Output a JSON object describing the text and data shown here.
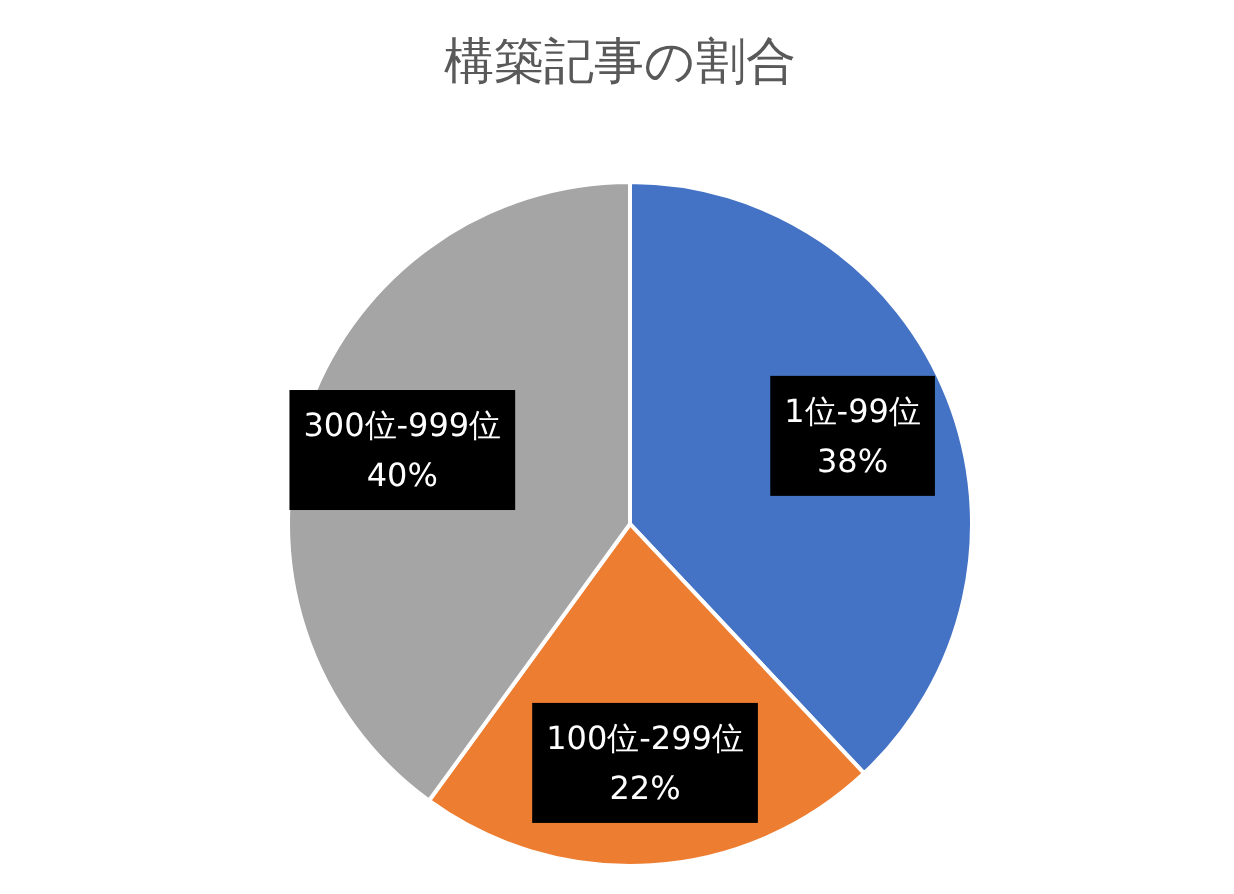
{
  "chart_data": {
    "type": "pie",
    "title": "構築記事の割合",
    "categories": [
      "1位-99位",
      "100位-299位",
      "300位-999位"
    ],
    "values": [
      38,
      22,
      40
    ],
    "colors": [
      "#4472c4",
      "#ed7d31",
      "#a5a5a5"
    ],
    "value_labels": [
      "38%",
      "22%",
      "40%"
    ]
  }
}
